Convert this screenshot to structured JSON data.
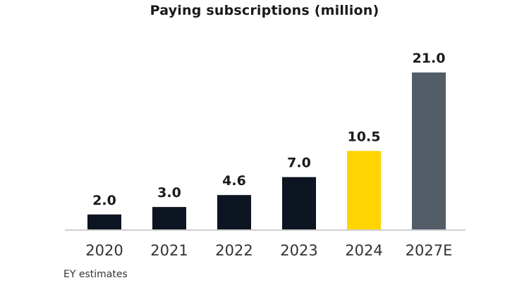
{
  "chart_data": {
    "type": "bar",
    "title": "Paying subscriptions (million)",
    "categories": [
      "2020",
      "2021",
      "2022",
      "2023",
      "2024",
      "2027E"
    ],
    "values": [
      2.0,
      3.0,
      4.6,
      7.0,
      10.5,
      21.0
    ],
    "value_labels": [
      "2.0",
      "3.0",
      "4.6",
      "7.0",
      "10.5",
      "21.0"
    ],
    "colors": [
      "#0d1522",
      "#0d1522",
      "#0d1522",
      "#0d1522",
      "#ffd400",
      "#525d68"
    ],
    "xlabel": "",
    "ylabel": "",
    "ylim": [
      0,
      21.0
    ],
    "grid": false,
    "legend": "none",
    "source_note": "EY estimates"
  }
}
